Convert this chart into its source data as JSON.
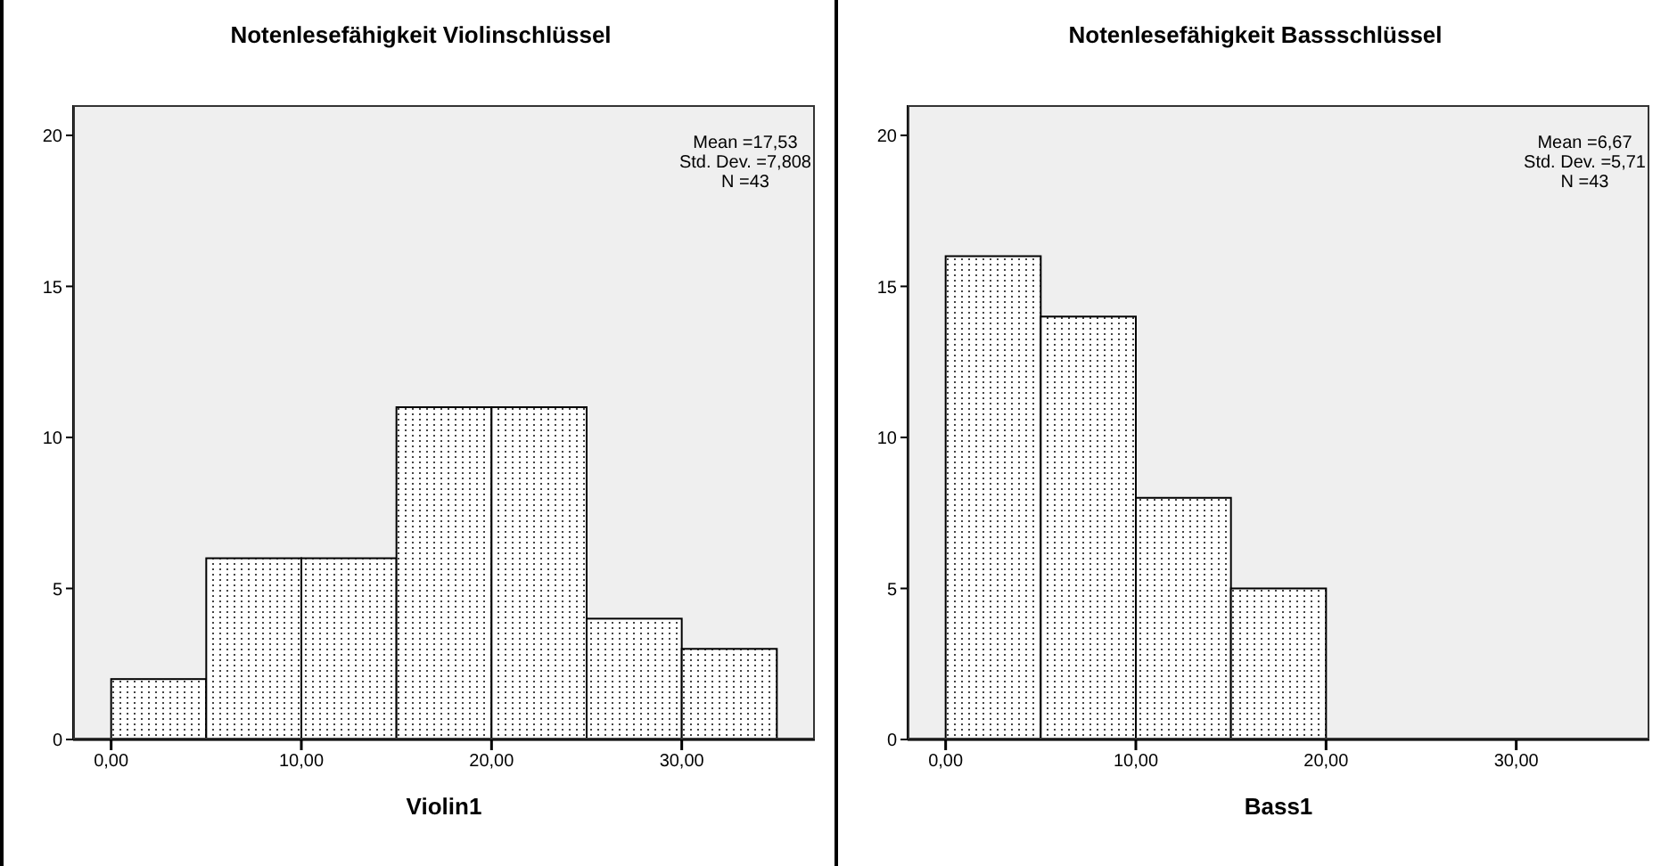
{
  "chart_data": [
    {
      "type": "histogram",
      "title": "Notenlesefähigkeit Violinschlüssel",
      "xlabel": "Violin1",
      "bins": [
        0,
        5,
        10,
        15,
        20,
        25,
        30,
        35
      ],
      "values": [
        2,
        6,
        6,
        11,
        11,
        4,
        3
      ],
      "color": "#ffffff",
      "xlim": [
        -2,
        37
      ],
      "xticks": [
        {
          "value": 0,
          "label": "0,00"
        },
        {
          "value": 10,
          "label": "10,00"
        },
        {
          "value": 20,
          "label": "20,00"
        },
        {
          "value": 30,
          "label": "30,00"
        }
      ],
      "ylim": [
        0,
        21
      ],
      "yticks": [
        0,
        5,
        10,
        15,
        20
      ],
      "grid": false,
      "legend": false,
      "annotations": [
        "Mean =17,53",
        "Std. Dev. =7,808",
        "N =43"
      ]
    },
    {
      "type": "histogram",
      "title": "Notenlesefähigkeit Bassschlüssel",
      "xlabel": "Bass1",
      "bins": [
        0,
        5,
        10,
        15,
        20
      ],
      "values": [
        16,
        14,
        8,
        5
      ],
      "color": "#ffffff",
      "xlim": [
        -2,
        37
      ],
      "xticks": [
        {
          "value": 0,
          "label": "0,00"
        },
        {
          "value": 10,
          "label": "10,00"
        },
        {
          "value": 20,
          "label": "20,00"
        },
        {
          "value": 30,
          "label": "30,00"
        }
      ],
      "ylim": [
        0,
        21
      ],
      "yticks": [
        0,
        5,
        10,
        15,
        20
      ],
      "grid": false,
      "legend": false,
      "annotations": [
        "Mean =6,67",
        "Std. Dev. =5,71",
        "N =43"
      ]
    }
  ]
}
